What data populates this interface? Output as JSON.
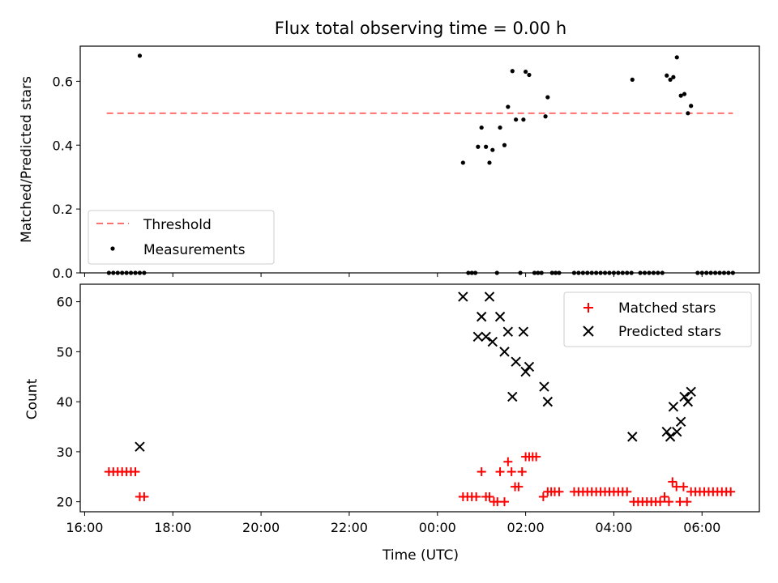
{
  "chart_data": [
    {
      "type": "scatter",
      "title": "Flux total observing time = 0.00 h",
      "xlabel": "",
      "ylabel": "Matched/Predicted stars",
      "x_unit": "hours after 16:00 UTC",
      "xlim": [
        15.9,
        31.3
      ],
      "ylim": [
        0.0,
        0.71
      ],
      "yticks": [
        "0.0",
        "0.2",
        "0.4",
        "0.6"
      ],
      "legend": {
        "placement": "lower-left",
        "entries": [
          "Threshold",
          "Measurements"
        ]
      },
      "threshold": {
        "name": "Threshold",
        "value": 0.5,
        "x_range": [
          16.5,
          30.7
        ],
        "color": "#ff7070",
        "style": "dashed"
      },
      "series": [
        {
          "name": "Measurements",
          "color": "#000000",
          "marker": "dot",
          "points": [
            [
              17.25,
              0.68
            ],
            [
              24.58,
              0.345
            ],
            [
              24.92,
              0.395
            ],
            [
              25.0,
              0.455
            ],
            [
              25.1,
              0.395
            ],
            [
              25.18,
              0.345
            ],
            [
              25.25,
              0.385
            ],
            [
              25.42,
              0.455
            ],
            [
              25.52,
              0.4
            ],
            [
              25.6,
              0.52
            ],
            [
              25.7,
              0.632
            ],
            [
              25.78,
              0.48
            ],
            [
              25.95,
              0.48
            ],
            [
              26.0,
              0.63
            ],
            [
              26.08,
              0.62
            ],
            [
              26.45,
              0.49
            ],
            [
              26.5,
              0.55
            ],
            [
              28.42,
              0.605
            ],
            [
              29.2,
              0.618
            ],
            [
              29.28,
              0.605
            ],
            [
              29.35,
              0.613
            ],
            [
              29.43,
              0.675
            ],
            [
              29.52,
              0.555
            ],
            [
              29.6,
              0.56
            ],
            [
              29.68,
              0.5
            ],
            [
              29.75,
              0.523
            ],
            [
              16.55,
              0.0
            ],
            [
              16.65,
              0.0
            ],
            [
              16.75,
              0.0
            ],
            [
              16.85,
              0.0
            ],
            [
              16.95,
              0.0
            ],
            [
              17.05,
              0.0
            ],
            [
              17.15,
              0.0
            ],
            [
              17.25,
              0.0
            ],
            [
              17.35,
              0.0
            ],
            [
              24.7,
              0.0
            ],
            [
              24.78,
              0.0
            ],
            [
              24.86,
              0.0
            ],
            [
              25.35,
              0.0
            ],
            [
              25.88,
              0.0
            ],
            [
              26.2,
              0.0
            ],
            [
              26.28,
              0.0
            ],
            [
              26.36,
              0.0
            ],
            [
              26.6,
              0.0
            ],
            [
              26.68,
              0.0
            ],
            [
              26.76,
              0.0
            ],
            [
              27.1,
              0.0
            ],
            [
              27.2,
              0.0
            ],
            [
              27.3,
              0.0
            ],
            [
              27.4,
              0.0
            ],
            [
              27.5,
              0.0
            ],
            [
              27.6,
              0.0
            ],
            [
              27.7,
              0.0
            ],
            [
              27.8,
              0.0
            ],
            [
              27.9,
              0.0
            ],
            [
              28.0,
              0.0
            ],
            [
              28.1,
              0.0
            ],
            [
              28.2,
              0.0
            ],
            [
              28.3,
              0.0
            ],
            [
              28.4,
              0.0
            ],
            [
              28.6,
              0.0
            ],
            [
              28.7,
              0.0
            ],
            [
              28.8,
              0.0
            ],
            [
              28.9,
              0.0
            ],
            [
              29.0,
              0.0
            ],
            [
              29.1,
              0.0
            ],
            [
              29.9,
              0.0
            ],
            [
              30.0,
              0.0
            ],
            [
              30.1,
              0.0
            ],
            [
              30.2,
              0.0
            ],
            [
              30.3,
              0.0
            ],
            [
              30.4,
              0.0
            ],
            [
              30.5,
              0.0
            ],
            [
              30.6,
              0.0
            ],
            [
              30.7,
              0.0
            ]
          ]
        }
      ]
    },
    {
      "type": "scatter",
      "title": "",
      "xlabel": "Time (UTC)",
      "ylabel": "Count",
      "x_unit": "hours after 16:00 UTC",
      "xlim": [
        15.9,
        31.3
      ],
      "ylim": [
        18,
        63.5
      ],
      "yticks": [
        "20",
        "30",
        "40",
        "50",
        "60"
      ],
      "xticks": [
        {
          "x": 16,
          "label": "16:00"
        },
        {
          "x": 18,
          "label": "18:00"
        },
        {
          "x": 20,
          "label": "20:00"
        },
        {
          "x": 22,
          "label": "22:00"
        },
        {
          "x": 24,
          "label": "00:00"
        },
        {
          "x": 26,
          "label": "02:00"
        },
        {
          "x": 28,
          "label": "04:00"
        },
        {
          "x": 30,
          "label": "06:00"
        }
      ],
      "legend": {
        "placement": "top-right",
        "entries": [
          "Matched stars",
          "Predicted stars"
        ]
      },
      "series": [
        {
          "name": "Matched stars",
          "color": "#ff0000",
          "marker": "plus",
          "points": [
            [
              16.55,
              26
            ],
            [
              16.65,
              26
            ],
            [
              16.75,
              26
            ],
            [
              16.85,
              26
            ],
            [
              16.95,
              26
            ],
            [
              17.05,
              26
            ],
            [
              17.15,
              26
            ],
            [
              17.25,
              21
            ],
            [
              17.35,
              21
            ],
            [
              24.58,
              21
            ],
            [
              24.68,
              21
            ],
            [
              24.78,
              21
            ],
            [
              24.88,
              21
            ],
            [
              25.0,
              26
            ],
            [
              25.1,
              21
            ],
            [
              25.18,
              21
            ],
            [
              25.28,
              20
            ],
            [
              25.36,
              20
            ],
            [
              25.42,
              26
            ],
            [
              25.52,
              20
            ],
            [
              25.6,
              28
            ],
            [
              25.68,
              26
            ],
            [
              25.76,
              23
            ],
            [
              25.84,
              23
            ],
            [
              25.92,
              26
            ],
            [
              26.0,
              29
            ],
            [
              26.08,
              29
            ],
            [
              26.16,
              29
            ],
            [
              26.24,
              29
            ],
            [
              26.4,
              21
            ],
            [
              26.5,
              22
            ],
            [
              26.58,
              22
            ],
            [
              26.66,
              22
            ],
            [
              26.76,
              22
            ],
            [
              27.1,
              22
            ],
            [
              27.2,
              22
            ],
            [
              27.3,
              22
            ],
            [
              27.4,
              22
            ],
            [
              27.5,
              22
            ],
            [
              27.6,
              22
            ],
            [
              27.7,
              22
            ],
            [
              27.8,
              22
            ],
            [
              27.9,
              22
            ],
            [
              28.0,
              22
            ],
            [
              28.1,
              22
            ],
            [
              28.2,
              22
            ],
            [
              28.3,
              22
            ],
            [
              28.45,
              20
            ],
            [
              28.55,
              20
            ],
            [
              28.65,
              20
            ],
            [
              28.75,
              20
            ],
            [
              28.85,
              20
            ],
            [
              28.95,
              20
            ],
            [
              29.05,
              20
            ],
            [
              29.15,
              21
            ],
            [
              29.25,
              20
            ],
            [
              29.33,
              24
            ],
            [
              29.42,
              23
            ],
            [
              29.5,
              20
            ],
            [
              29.58,
              23
            ],
            [
              29.66,
              20
            ],
            [
              29.75,
              22
            ],
            [
              29.85,
              22
            ],
            [
              29.95,
              22
            ],
            [
              30.05,
              22
            ],
            [
              30.15,
              22
            ],
            [
              30.25,
              22
            ],
            [
              30.35,
              22
            ],
            [
              30.45,
              22
            ],
            [
              30.55,
              22
            ],
            [
              30.65,
              22
            ]
          ]
        },
        {
          "name": "Predicted stars",
          "color": "#000000",
          "marker": "x",
          "points": [
            [
              17.25,
              31
            ],
            [
              24.58,
              61
            ],
            [
              24.92,
              53
            ],
            [
              25.0,
              57
            ],
            [
              25.1,
              53
            ],
            [
              25.18,
              61
            ],
            [
              25.25,
              52
            ],
            [
              25.42,
              57
            ],
            [
              25.52,
              50
            ],
            [
              25.6,
              54
            ],
            [
              25.7,
              41
            ],
            [
              25.78,
              48
            ],
            [
              25.95,
              54
            ],
            [
              26.0,
              46
            ],
            [
              26.08,
              47
            ],
            [
              26.42,
              43
            ],
            [
              26.5,
              40
            ],
            [
              28.42,
              33
            ],
            [
              29.2,
              34
            ],
            [
              29.28,
              33
            ],
            [
              29.35,
              39
            ],
            [
              29.43,
              34
            ],
            [
              29.52,
              36
            ],
            [
              29.6,
              41
            ],
            [
              29.68,
              40
            ],
            [
              29.75,
              42
            ]
          ]
        }
      ]
    }
  ]
}
